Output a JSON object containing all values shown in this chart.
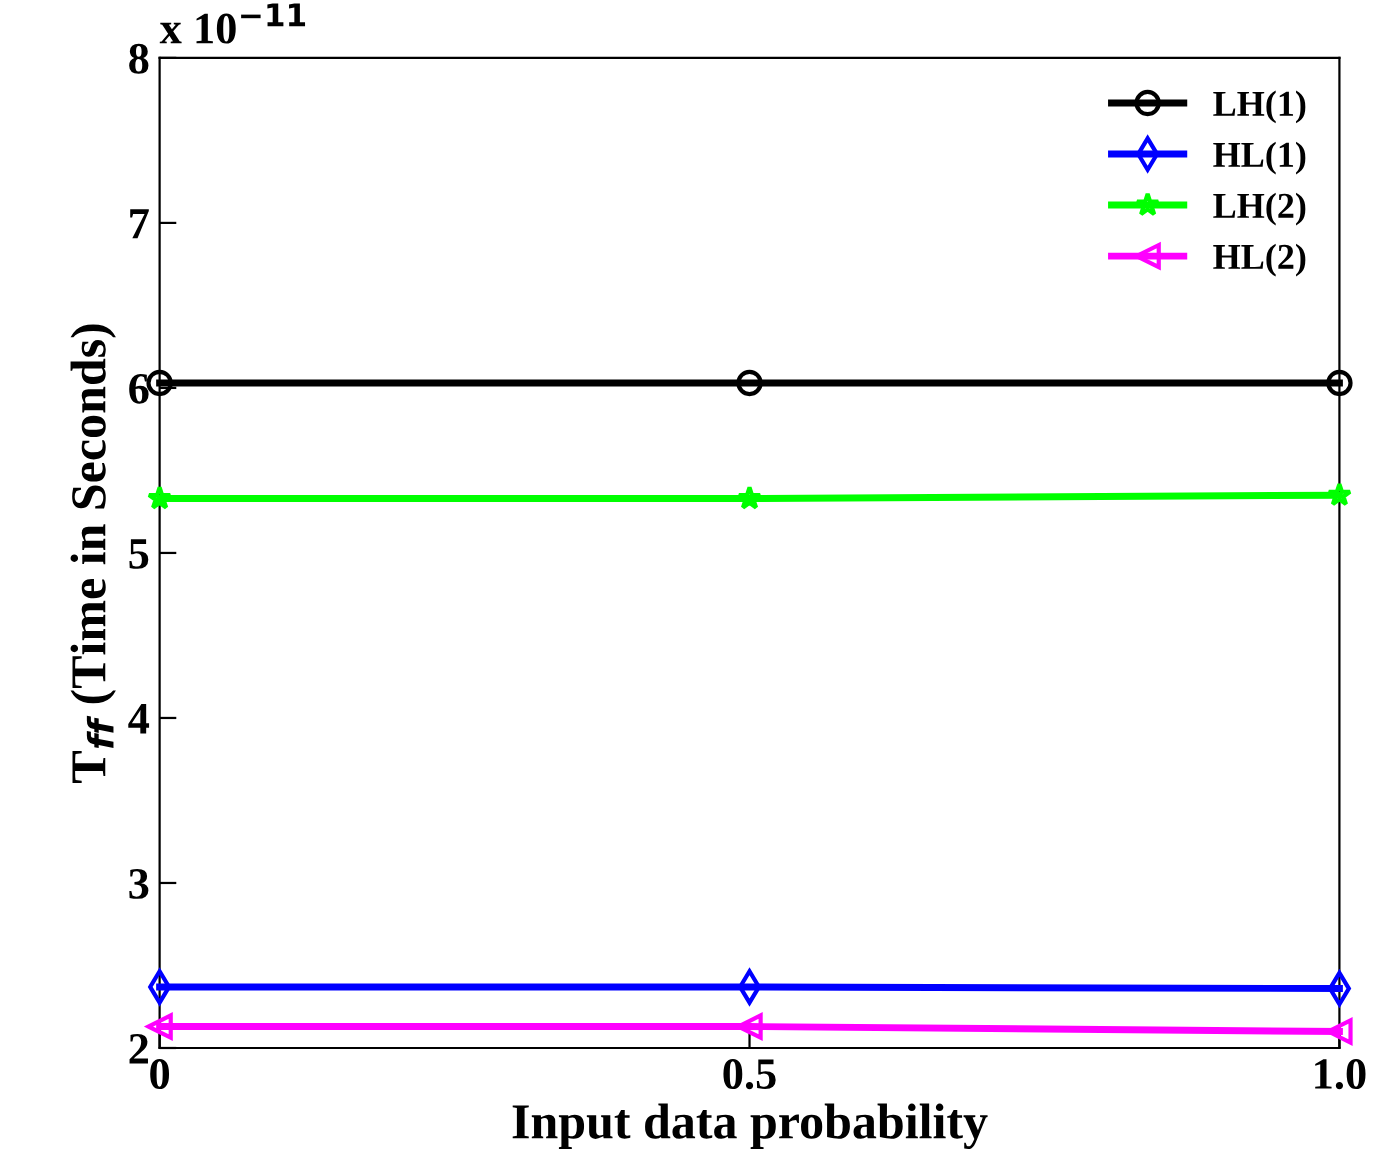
{
  "chart_data": {
    "type": "line",
    "xlabel": "Input data probability",
    "ylabel": "T$_{ff}$ (Time in Seconds)",
    "x": [
      0,
      0.5,
      1.0
    ],
    "series": [
      {
        "name": "LH(1)",
        "color": "#000000",
        "marker": "circle",
        "values": [
          6.03,
          6.03,
          6.03
        ]
      },
      {
        "name": "HL(1)",
        "color": "#0000ff",
        "marker": "diamond",
        "values": [
          2.37,
          2.37,
          2.36
        ]
      },
      {
        "name": "LH(2)",
        "color": "#00ff00",
        "marker": "star",
        "values": [
          5.33,
          5.33,
          5.35
        ]
      },
      {
        "name": "HL(2)",
        "color": "#ff00ff",
        "marker": "triangle",
        "values": [
          2.13,
          2.13,
          2.1
        ]
      }
    ],
    "xlim": [
      0,
      1.0
    ],
    "xticks": [
      0,
      0.5,
      {
        "value": 1.0,
        "label": "1.0"
      }
    ],
    "ylim": [
      2,
      8
    ],
    "yticks": [
      2,
      3,
      4,
      5,
      6,
      7,
      8
    ],
    "annotations": [
      "x 10$^{−11}$"
    ],
    "legend": "top right",
    "grid": false,
    "line_style": "solid"
  }
}
